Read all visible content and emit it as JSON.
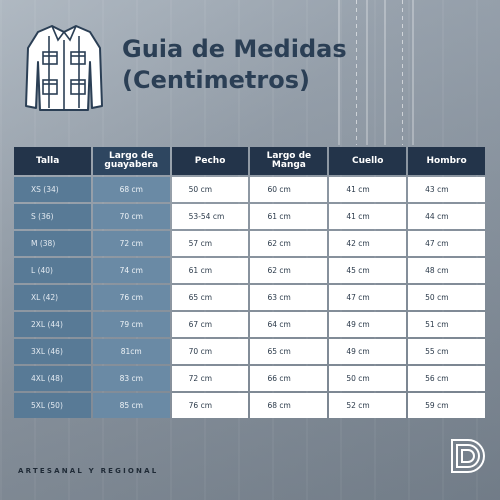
{
  "header": {
    "title_line1": "Guia de Medidas",
    "title_line2": "(Centimetros)"
  },
  "table": {
    "columns": [
      "Talla",
      "Largo de\nguayabera",
      "Pecho",
      "Largo de\nManga",
      "Cuello",
      "Hombro"
    ],
    "rows": [
      [
        "XS (34)",
        "68 cm",
        "50 cm",
        "60 cm",
        "41 cm",
        "43 cm"
      ],
      [
        "S (36)",
        "70 cm",
        "53-54 cm",
        "61 cm",
        "41 cm",
        "44 cm"
      ],
      [
        "M (38)",
        "72 cm",
        "57 cm",
        "62 cm",
        "42 cm",
        "47 cm"
      ],
      [
        "L (40)",
        "74 cm",
        "61 cm",
        "62 cm",
        "45 cm",
        "48 cm"
      ],
      [
        "XL (42)",
        "76 cm",
        "65 cm",
        "63 cm",
        "47 cm",
        "50 cm"
      ],
      [
        "2XL (44)",
        "79 cm",
        "67 cm",
        "64 cm",
        "49 cm",
        "51 cm"
      ],
      [
        "3XL (46)",
        "81cm",
        "70 cm",
        "65 cm",
        "49 cm",
        "55 cm"
      ],
      [
        "4XL (48)",
        "83 cm",
        "72 cm",
        "66 cm",
        "50 cm",
        "56 cm"
      ],
      [
        "5XL (50)",
        "85 cm",
        "76 cm",
        "68 cm",
        "52 cm",
        "59 cm"
      ]
    ]
  },
  "footer": {
    "tagline": "ARTESANAL Y REGIONAL"
  },
  "icons": {
    "shirt": "guayabera-shirt-icon",
    "brand": "brand-logo-icon"
  },
  "colors": {
    "header_dark": "#23344a",
    "size_column": "#587a96",
    "length_column": "#6a8aa5",
    "title": "#2b3f55"
  }
}
